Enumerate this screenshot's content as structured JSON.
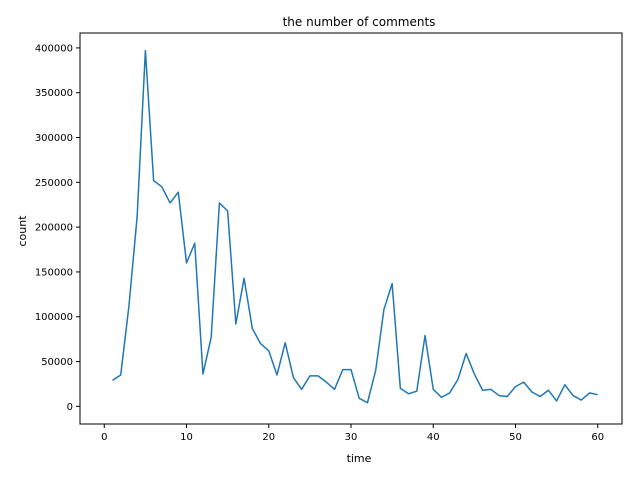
{
  "chart_data": {
    "type": "line",
    "title": "the number of comments",
    "xlabel": "time",
    "ylabel": "count",
    "xlim": [
      -2.95,
      62.95
    ],
    "ylim": [
      -19700,
      416650
    ],
    "xticks": [
      0,
      10,
      20,
      30,
      40,
      50,
      60
    ],
    "yticks": [
      0,
      50000,
      100000,
      150000,
      200000,
      250000,
      300000,
      350000,
      400000
    ],
    "grid": false,
    "series": [
      {
        "color": "#1f77b4",
        "x": [
          1,
          2,
          3,
          4,
          5,
          6,
          7,
          8,
          9,
          10,
          11,
          12,
          13,
          14,
          15,
          16,
          17,
          18,
          19,
          20,
          21,
          22,
          23,
          24,
          25,
          26,
          27,
          28,
          29,
          30,
          31,
          32,
          33,
          34,
          35,
          36,
          37,
          38,
          39,
          40,
          41,
          42,
          43,
          44,
          45,
          46,
          47,
          48,
          49,
          50,
          51,
          52,
          53,
          54,
          55,
          56,
          57,
          58,
          59,
          60
        ],
        "y": [
          29000,
          35000,
          112000,
          212000,
          397000,
          252000,
          245000,
          227000,
          239000,
          160000,
          182000,
          36000,
          77000,
          227000,
          218000,
          92000,
          143000,
          87000,
          70000,
          62000,
          35000,
          71000,
          32000,
          19000,
          34000,
          34000,
          27000,
          19000,
          41000,
          41000,
          9000,
          4000,
          40000,
          108000,
          137000,
          20000,
          14000,
          17000,
          79000,
          19000,
          10000,
          15000,
          30000,
          59000,
          36000,
          18000,
          19000,
          12000,
          11000,
          22000,
          27000,
          16000,
          11000,
          18000,
          6000,
          24000,
          12000,
          7000,
          15000,
          13000
        ]
      }
    ]
  }
}
